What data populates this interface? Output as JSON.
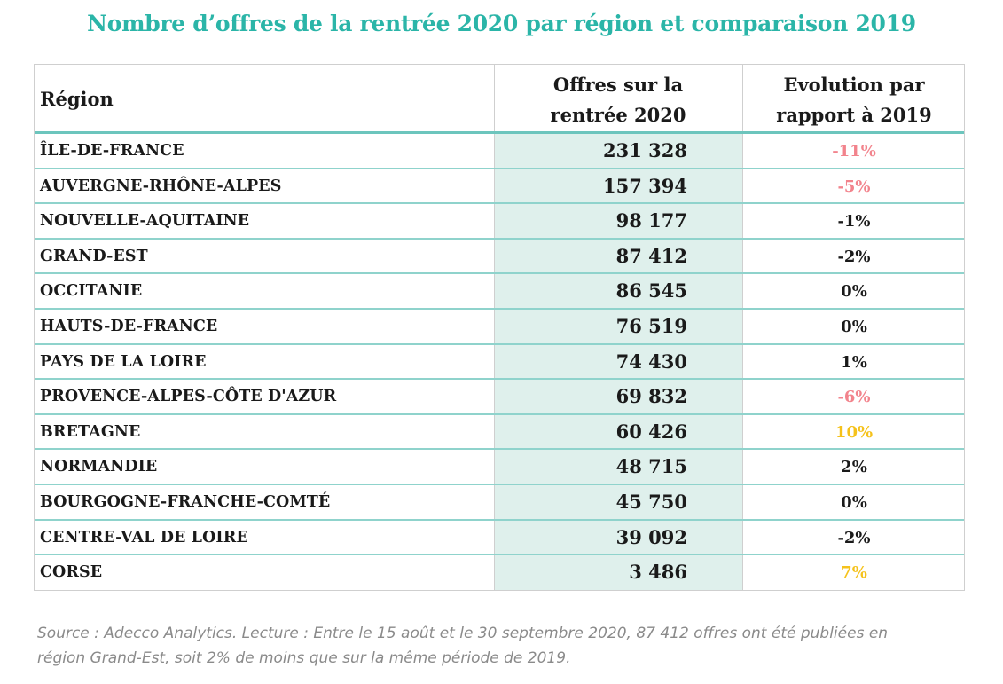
{
  "title": "Nombre d’offres de la rentrée 2020 par région et comparaison 2019",
  "table": {
    "headers": {
      "region": "Région",
      "offres_line1": "Offres sur la",
      "offres_line2": "rentrée 2020",
      "evolution_line1": "Evolution par",
      "evolution_line2": "rapport à 2019"
    },
    "rows": [
      {
        "region": "ÎLE-DE-FRANCE",
        "offres": "231 328",
        "evolution": "-11%",
        "color": "#f2838c"
      },
      {
        "region": "AUVERGNE-RHÔNE-ALPES",
        "offres": "157 394",
        "evolution": "-5%",
        "color": "#f2838c"
      },
      {
        "region": "NOUVELLE-AQUITAINE",
        "offres": "98 177",
        "evolution": "-1%",
        "color": "#1a1a1a"
      },
      {
        "region": "GRAND-EST",
        "offres": "87 412",
        "evolution": "-2%",
        "color": "#1a1a1a"
      },
      {
        "region": "OCCITANIE",
        "offres": "86 545",
        "evolution": "0%",
        "color": "#1a1a1a"
      },
      {
        "region": "HAUTS-DE-FRANCE",
        "offres": "76 519",
        "evolution": "0%",
        "color": "#1a1a1a"
      },
      {
        "region": "PAYS DE LA LOIRE",
        "offres": "74 430",
        "evolution": "1%",
        "color": "#1a1a1a"
      },
      {
        "region": "PROVENCE-ALPES-CÔTE D'AZUR",
        "offres": "69 832",
        "evolution": "-6%",
        "color": "#f2838c"
      },
      {
        "region": "BRETAGNE",
        "offres": "60 426",
        "evolution": "10%",
        "color": "#f5c21b"
      },
      {
        "region": "NORMANDIE",
        "offres": "48 715",
        "evolution": "2%",
        "color": "#1a1a1a"
      },
      {
        "region": "BOURGOGNE-FRANCHE-COMTÉ",
        "offres": "45 750",
        "evolution": "0%",
        "color": "#1a1a1a"
      },
      {
        "region": "CENTRE-VAL DE LOIRE",
        "offres": "39 092",
        "evolution": "-2%",
        "color": "#1a1a1a"
      },
      {
        "region": "CORSE",
        "offres": "3 486",
        "evolution": "7%",
        "color": "#f5c21b"
      }
    ]
  },
  "footnote": {
    "line1": "Source : Adecco Analytics. Lecture : Entre le 15 août et le 30 septembre 2020, 87 412 offres ont été publiées en",
    "line2": "région Grand-Est, soit 2% de moins que sur la même période de 2019."
  },
  "colors": {
    "accent": "#2bb5a8",
    "highlight_column": "#dff0ec",
    "row_rule": "#8fd3cc",
    "negative": "#f2838c",
    "positive_high": "#f5c21b"
  }
}
